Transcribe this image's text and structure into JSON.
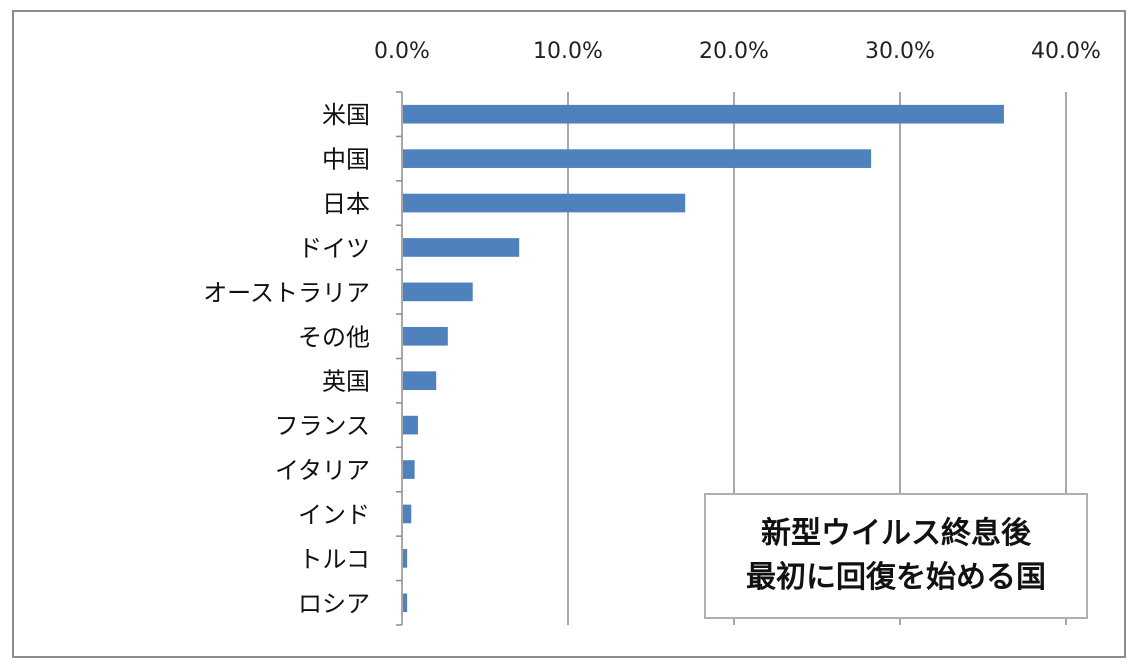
{
  "chart_data": {
    "type": "bar",
    "orientation": "horizontal",
    "title_lines": [
      "新型ウイルス終息後",
      "最初に回復を始める国"
    ],
    "categories": [
      "米国",
      "中国",
      "日本",
      "ドイツ",
      "オーストラリア",
      "その他",
      "英国",
      "フランス",
      "イタリア",
      "インド",
      "トルコ",
      "ロシア"
    ],
    "values": [
      36.2,
      28.2,
      17.0,
      7.0,
      4.2,
      2.7,
      2.0,
      0.9,
      0.7,
      0.5,
      0.25,
      0.25
    ],
    "xlim": [
      0,
      40
    ],
    "xticks": [
      "0.0%",
      "10.0%",
      "20.0%",
      "30.0%",
      "40.0%"
    ],
    "x_axis_position": "top",
    "grid": "vertical",
    "bar_color": "#4f81bd",
    "legend": "none"
  }
}
